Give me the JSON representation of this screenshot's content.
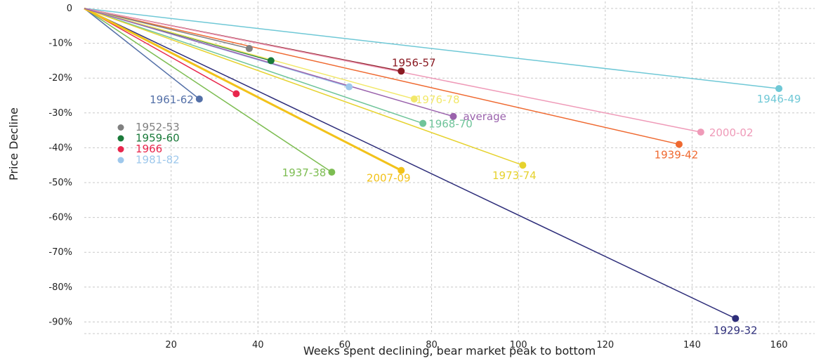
{
  "chart_data": {
    "type": "line",
    "title": "",
    "xlabel": "Weeks spent declining, bear market peak to bottom",
    "ylabel": "Price Decline",
    "xlim": [
      0,
      165
    ],
    "ylim": [
      -100,
      0
    ],
    "x_ticks": [
      20,
      40,
      60,
      80,
      100,
      120,
      140,
      160
    ],
    "x_tick_labels": [
      "20",
      "40",
      "60",
      "80",
      "100",
      "120",
      "140",
      "160"
    ],
    "y_ticks": [
      0,
      -10,
      -20,
      -30,
      -40,
      -50,
      -60,
      -70,
      -80,
      -90
    ],
    "y_tick_labels": [
      "0",
      "-10%",
      "-20%",
      "-30%",
      "-40%",
      "-50%",
      "-60%",
      "-70%",
      "-80%",
      "-90%"
    ],
    "grid": true,
    "legend": [
      {
        "name": "1952-53",
        "color": "#808080"
      },
      {
        "name": "1959-60",
        "color": "#1a7a3a"
      },
      {
        "name": "1966",
        "color": "#e8264c"
      },
      {
        "name": "1981-82",
        "color": "#9ec8ec"
      }
    ],
    "series": [
      {
        "name": "1929-32",
        "x": [
          0,
          150
        ],
        "y": [
          0,
          -89
        ],
        "color": "#2e2e7a",
        "label": "1929-32",
        "label_shown": true
      },
      {
        "name": "1937-38",
        "x": [
          0,
          57
        ],
        "y": [
          0,
          -47
        ],
        "color": "#7dbd52",
        "label": "1937-38",
        "label_shown": true
      },
      {
        "name": "1939-42",
        "x": [
          0,
          137
        ],
        "y": [
          0,
          -39
        ],
        "color": "#ef6930",
        "label": "1939-42",
        "label_shown": true
      },
      {
        "name": "1946-49",
        "x": [
          0,
          160
        ],
        "y": [
          0,
          -23
        ],
        "color": "#6fc8d6",
        "label": "1946-49",
        "label_shown": true
      },
      {
        "name": "1952-53",
        "x": [
          0,
          38
        ],
        "y": [
          0,
          -11.5
        ],
        "color": "#808080",
        "label": "1952-53",
        "label_shown": false
      },
      {
        "name": "1956-57",
        "x": [
          0,
          73
        ],
        "y": [
          0,
          -18
        ],
        "color": "#8a1a22",
        "label": "1956-57",
        "label_shown": true
      },
      {
        "name": "1959-60",
        "x": [
          0,
          43
        ],
        "y": [
          0,
          -15
        ],
        "color": "#1a7a3a",
        "label": "1959-60",
        "label_shown": false
      },
      {
        "name": "1961-62",
        "x": [
          0,
          26.5
        ],
        "y": [
          0,
          -26
        ],
        "color": "#5470a8",
        "label": "1961-62",
        "label_shown": true
      },
      {
        "name": "1966",
        "x": [
          0,
          35
        ],
        "y": [
          0,
          -24.5
        ],
        "color": "#e8264c",
        "label": "1966",
        "label_shown": false
      },
      {
        "name": "1968-70",
        "x": [
          0,
          78
        ],
        "y": [
          0,
          -33
        ],
        "color": "#6fc49a",
        "label": "1968-70",
        "label_shown": true
      },
      {
        "name": "1973-74",
        "x": [
          0,
          101
        ],
        "y": [
          0,
          -45
        ],
        "color": "#e6d22e",
        "label": "1973-74",
        "label_shown": true
      },
      {
        "name": "1976-78",
        "x": [
          0,
          76
        ],
        "y": [
          0,
          -26
        ],
        "color": "#f2e86a",
        "label": "1976-78",
        "label_shown": true
      },
      {
        "name": "1981-82",
        "x": [
          0,
          61
        ],
        "y": [
          0,
          -22.5
        ],
        "color": "#9ec8ec",
        "label": "1981-82",
        "label_shown": false
      },
      {
        "name": "2000-02",
        "x": [
          0,
          142
        ],
        "y": [
          0,
          -35.5
        ],
        "color": "#ef9ab8",
        "label": "2000-02",
        "label_shown": true
      },
      {
        "name": "2007-09",
        "x": [
          0,
          73
        ],
        "y": [
          0,
          -46.5
        ],
        "color": "#f2c21a",
        "label": "2007-09",
        "label_shown": true
      },
      {
        "name": "average",
        "x": [
          0,
          85
        ],
        "y": [
          0,
          -31
        ],
        "color": "#9a62ac",
        "label": "average",
        "label_shown": true
      }
    ]
  }
}
